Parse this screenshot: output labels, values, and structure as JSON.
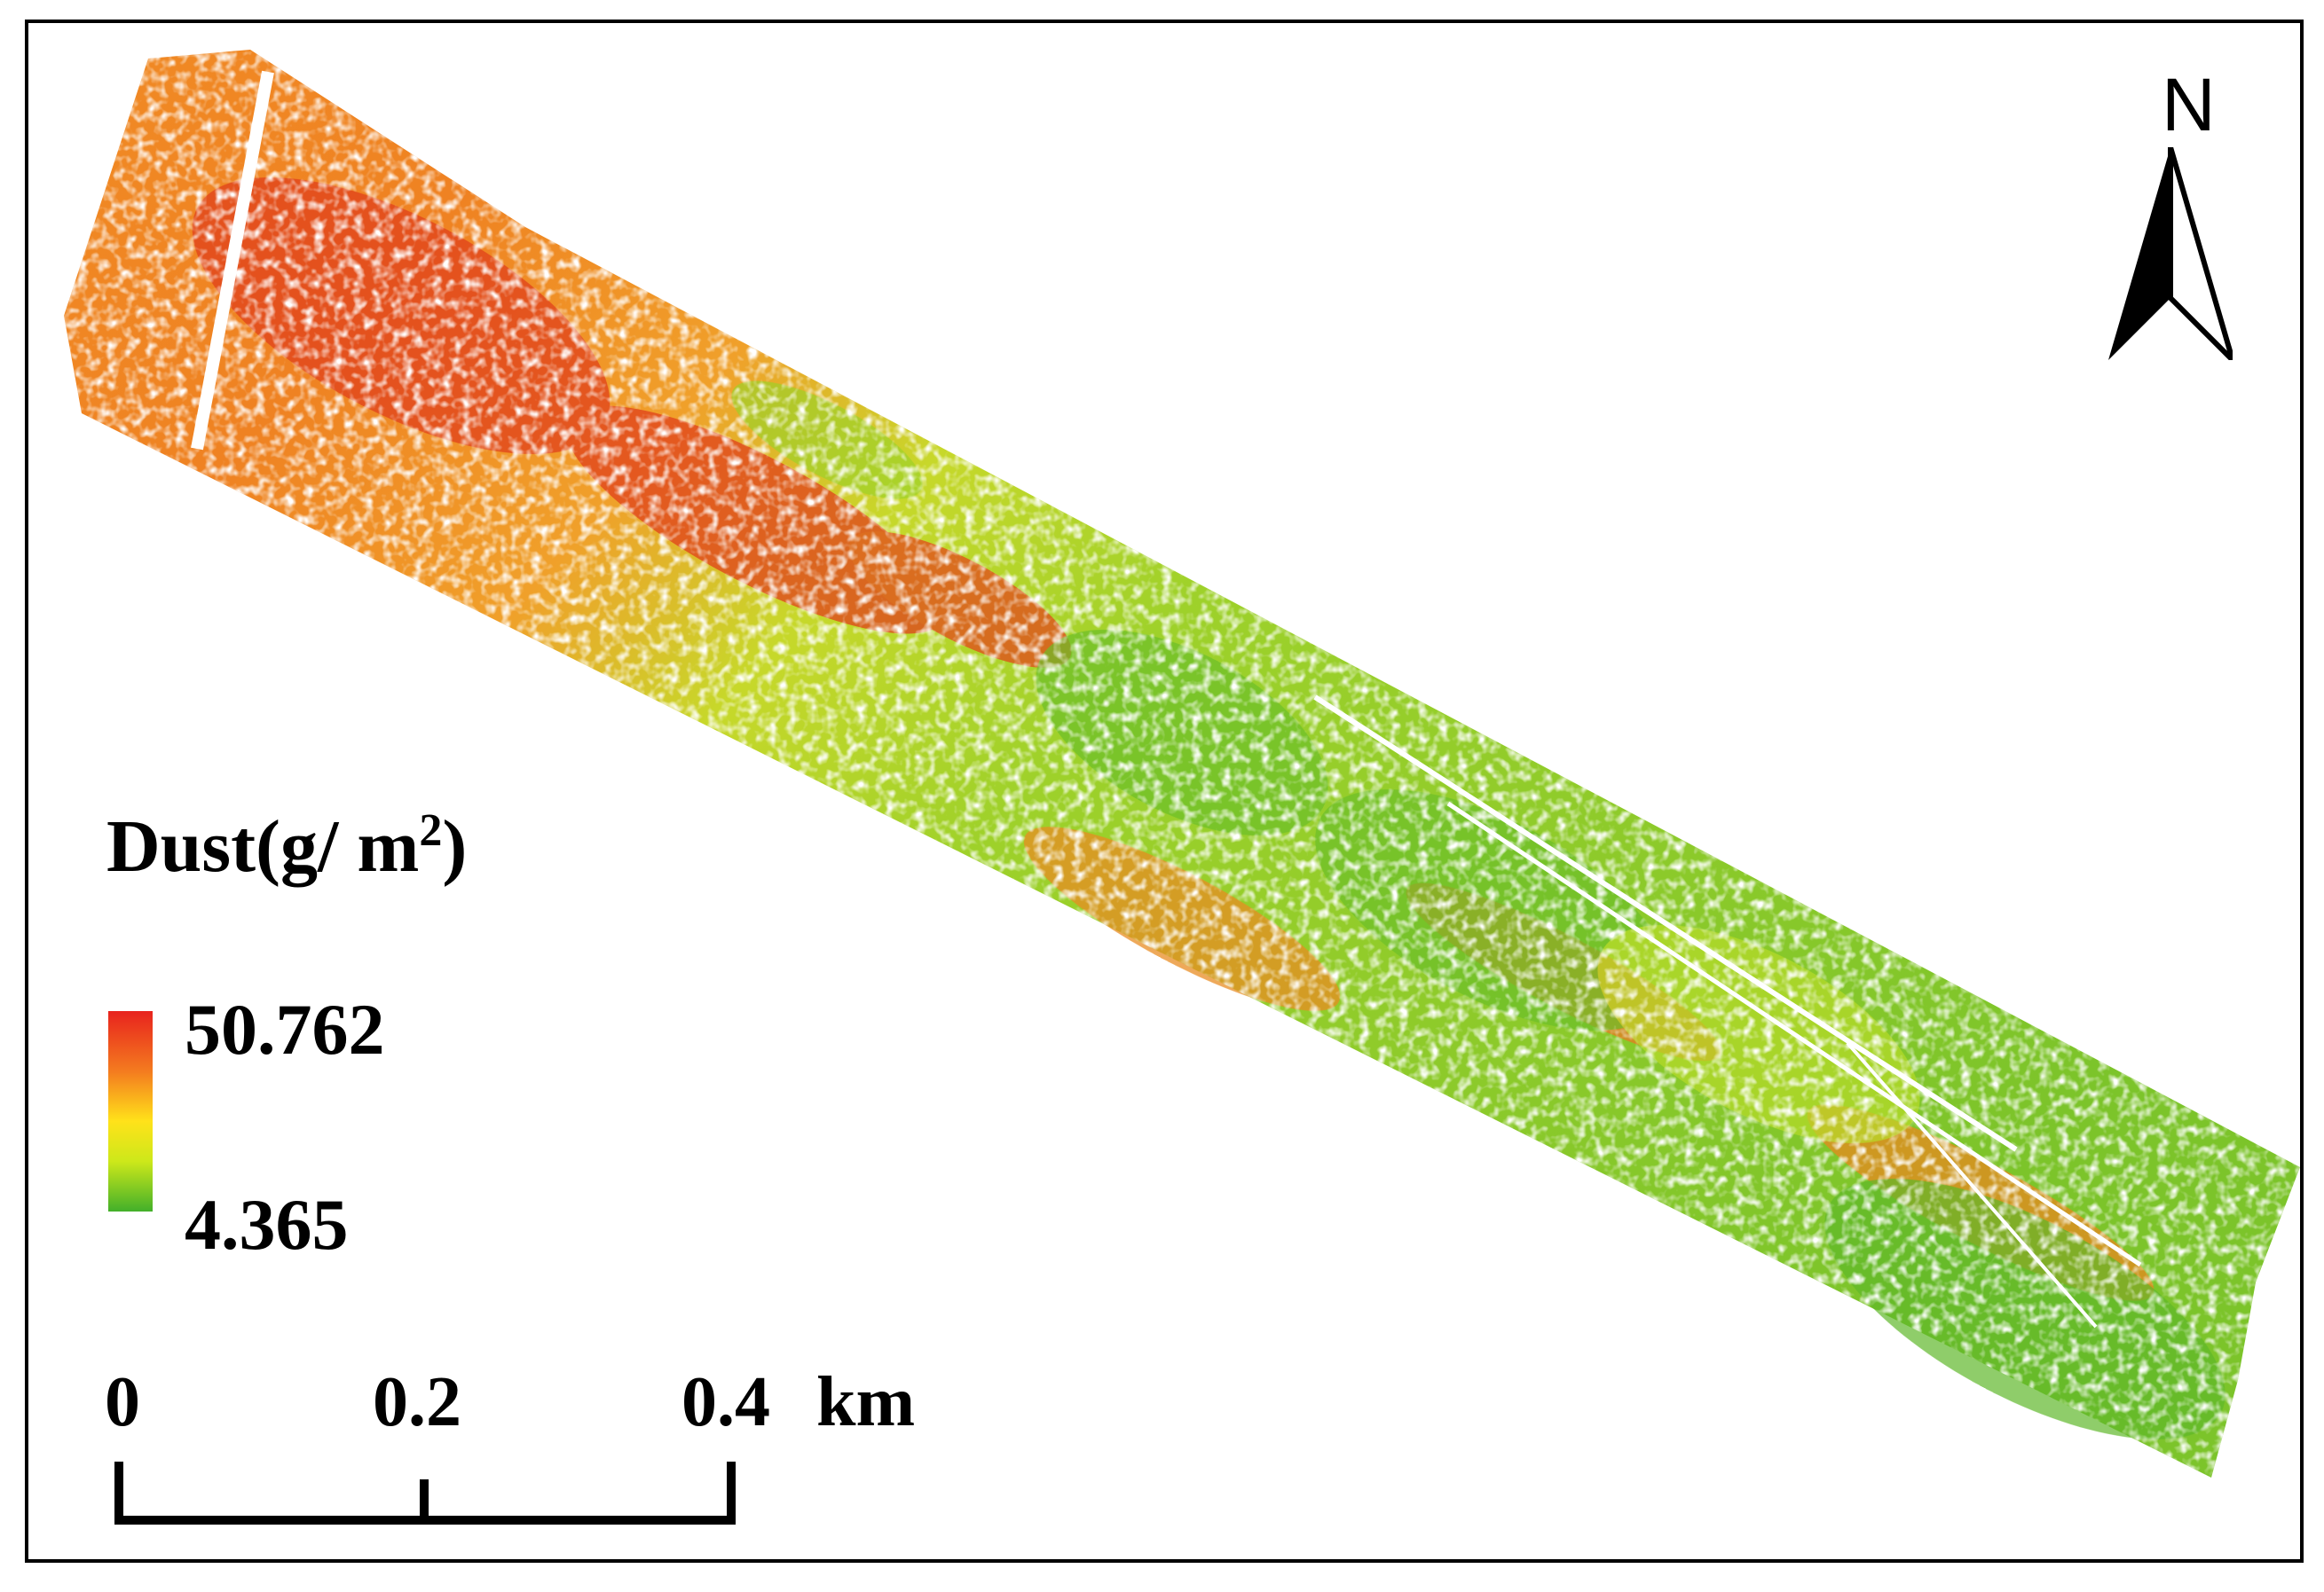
{
  "north_arrow": {
    "label": "N",
    "icon": "north-arrow-icon"
  },
  "legend": {
    "title": "Dust(g/ m",
    "title_superscript": "2",
    "title_close": ")",
    "max_label": "50.762",
    "min_label": "4.365",
    "colors": {
      "high": "#e8231e",
      "mid_high": "#f47b1f",
      "mid": "#ffe21a",
      "mid_low": "#cde81a",
      "low": "#42b02a"
    }
  },
  "scale_bar": {
    "labels": [
      "0",
      "0.2",
      "0.4"
    ],
    "unit": "km"
  },
  "map": {
    "theme": "dust deposition raster strip",
    "colors": {
      "orange": "#f08a24",
      "red": "#e0401c",
      "yellow": "#f2e02a",
      "lime": "#b8dc2a",
      "green": "#6cbf2a"
    }
  }
}
